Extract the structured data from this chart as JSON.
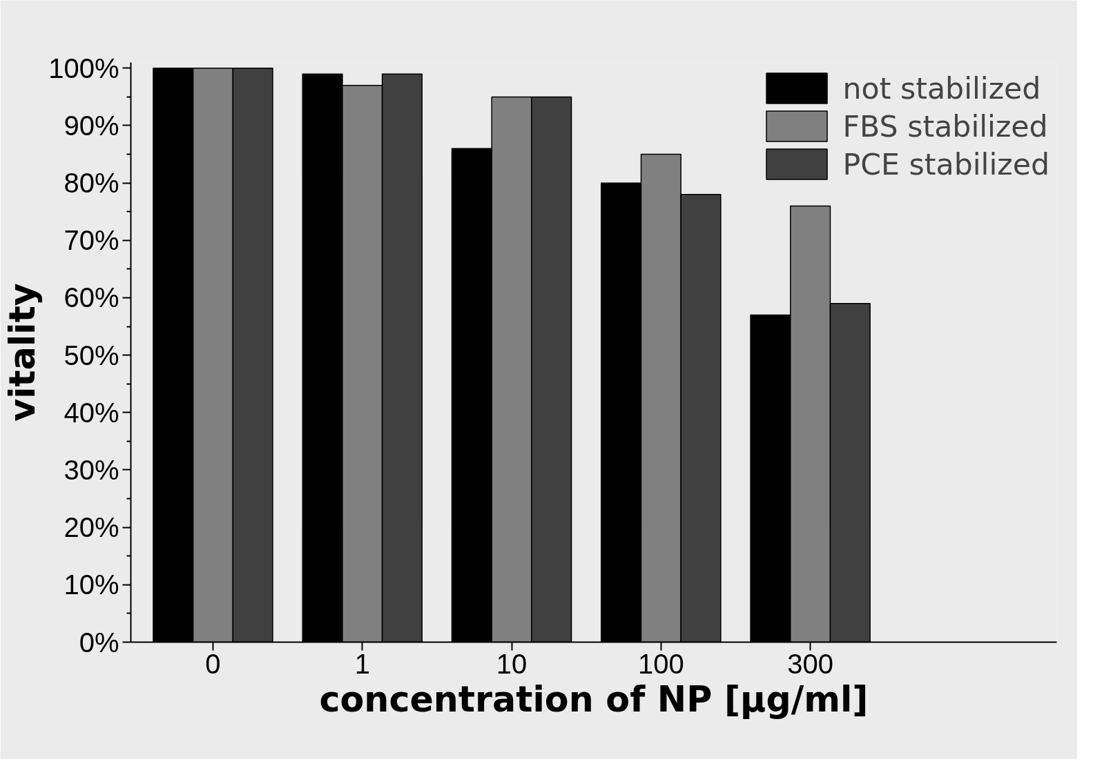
{
  "chart_data": {
    "type": "bar",
    "xlabel": "concentration of NP [μg/ml]",
    "ylabel": "vitality",
    "categories": [
      "0",
      "1",
      "10",
      "100",
      "300"
    ],
    "series": [
      {
        "name": "not stabilized",
        "color": "#000000",
        "values": [
          100,
          99,
          86,
          80,
          57
        ]
      },
      {
        "name": "FBS stabilized",
        "color": "#808080",
        "values": [
          100,
          97,
          95,
          85,
          76
        ]
      },
      {
        "name": "PCE stabilized",
        "color": "#404040",
        "values": [
          100,
          99,
          95,
          78,
          59
        ]
      }
    ],
    "ylim": [
      0,
      101
    ],
    "yticks": [
      {
        "value": 0,
        "label": "0%"
      },
      {
        "value": 10,
        "label": "10%"
      },
      {
        "value": 20,
        "label": "20%"
      },
      {
        "value": 30,
        "label": "30%"
      },
      {
        "value": 40,
        "label": "40%"
      },
      {
        "value": 50,
        "label": "50%"
      },
      {
        "value": 60,
        "label": "60%"
      },
      {
        "value": 70,
        "label": "70%"
      },
      {
        "value": 80,
        "label": "80%"
      },
      {
        "value": 90,
        "label": "90%"
      },
      {
        "value": 100,
        "label": "100%"
      }
    ],
    "grid": false,
    "legend": "top right"
  }
}
